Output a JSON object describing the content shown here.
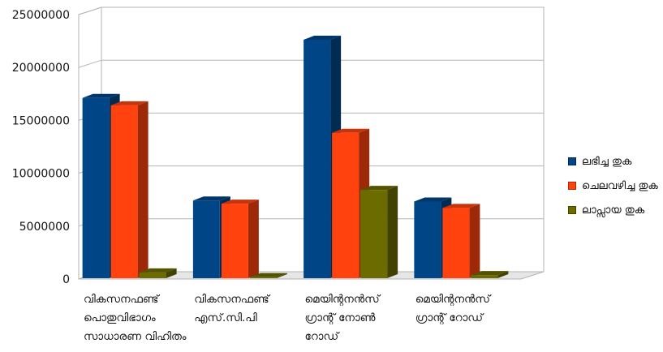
{
  "chart_data": {
    "type": "bar",
    "title": "",
    "xlabel": "",
    "ylabel": "",
    "ylim": [
      0,
      25000000
    ],
    "y_ticks": [
      "0",
      "5000000",
      "10000000",
      "15000000",
      "20000000",
      "25000000"
    ],
    "grid": true,
    "legend_position": "right",
    "categories": [
      [
        "വികസനഫണ്ട്",
        "പൊതുവിഭാഗം",
        "സാധാരണ വിഹിതം"
      ],
      [
        "വികസനഫണ്ട്",
        "എസ്.സി.പി"
      ],
      [
        "മെയിന്റനൻസ്",
        "ഗ്രാന്റ് നോൺ",
        "റോഡ്"
      ],
      [
        "മെയിന്റനൻസ്",
        "ഗ്രാന്റ് റോഡ്"
      ]
    ],
    "series": [
      {
        "name": "ലഭിച്ച തുക",
        "color": "#004586",
        "values": [
          17200000,
          7500000,
          22700000,
          7400000
        ]
      },
      {
        "name": "ചെലവഴിച്ച തുക",
        "color": "#ff420e",
        "values": [
          16500000,
          7200000,
          13900000,
          6800000
        ]
      },
      {
        "name": "ലാപ്സായ തുക",
        "color": "#6b6b00",
        "values": [
          700000,
          250000,
          8500000,
          450000
        ]
      }
    ]
  }
}
